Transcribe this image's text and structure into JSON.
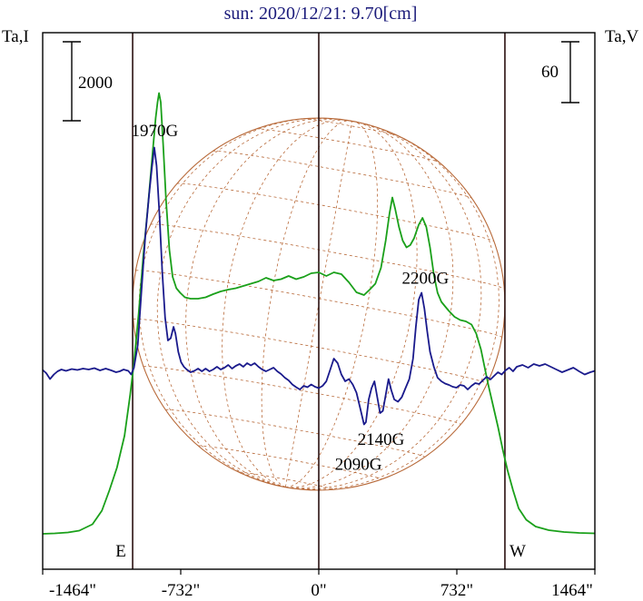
{
  "chart_data": {
    "type": "line",
    "title": "sun: 2020/12/21: 9.70[cm]",
    "ylabel_left": "Ta,I",
    "ylabel_right": "Ta,V",
    "scale_left_label": "2000",
    "scale_right_label": "60",
    "x_ticks": [
      {
        "value": -1464,
        "label": "-1464\""
      },
      {
        "value": -732,
        "label": "-732\""
      },
      {
        "value": 0,
        "label": "0\""
      },
      {
        "value": 732,
        "label": "732\""
      },
      {
        "value": 1464,
        "label": "1464\""
      }
    ],
    "xlim": [
      -1464,
      1464
    ],
    "limb_markers": [
      {
        "value": -987,
        "label": "E"
      },
      {
        "value": 987,
        "label": "W"
      }
    ],
    "series": [
      {
        "color": "#1aa01a",
        "points": [
          [
            -1464,
            0.04
          ],
          [
            -1400,
            0.05
          ],
          [
            -1330,
            0.07
          ],
          [
            -1270,
            0.11
          ],
          [
            -1200,
            0.25
          ],
          [
            -1150,
            0.55
          ],
          [
            -1110,
            1.0
          ],
          [
            -1070,
            1.5
          ],
          [
            -1030,
            2.2
          ],
          [
            -1000,
            3.1
          ],
          [
            -980,
            3.8
          ],
          [
            -955,
            4.9
          ],
          [
            -930,
            6.2
          ],
          [
            -905,
            7.3
          ],
          [
            -880,
            8.5
          ],
          [
            -865,
            9.2
          ],
          [
            -855,
            9.55
          ],
          [
            -847,
            9.75
          ],
          [
            -838,
            9.55
          ],
          [
            -825,
            8.6
          ],
          [
            -810,
            7.4
          ],
          [
            -792,
            6.3
          ],
          [
            -775,
            5.7
          ],
          [
            -755,
            5.45
          ],
          [
            -735,
            5.35
          ],
          [
            -710,
            5.25
          ],
          [
            -680,
            5.22
          ],
          [
            -640,
            5.22
          ],
          [
            -600,
            5.25
          ],
          [
            -560,
            5.32
          ],
          [
            -520,
            5.38
          ],
          [
            -480,
            5.42
          ],
          [
            -440,
            5.45
          ],
          [
            -400,
            5.5
          ],
          [
            -360,
            5.55
          ],
          [
            -320,
            5.6
          ],
          [
            -280,
            5.68
          ],
          [
            -240,
            5.62
          ],
          [
            -200,
            5.65
          ],
          [
            -160,
            5.72
          ],
          [
            -120,
            5.65
          ],
          [
            -80,
            5.7
          ],
          [
            -40,
            5.78
          ],
          [
            0,
            5.8
          ],
          [
            40,
            5.72
          ],
          [
            80,
            5.8
          ],
          [
            120,
            5.76
          ],
          [
            160,
            5.58
          ],
          [
            200,
            5.36
          ],
          [
            240,
            5.3
          ],
          [
            270,
            5.42
          ],
          [
            300,
            5.55
          ],
          [
            330,
            5.9
          ],
          [
            355,
            6.5
          ],
          [
            375,
            7.1
          ],
          [
            390,
            7.45
          ],
          [
            405,
            7.2
          ],
          [
            425,
            6.8
          ],
          [
            445,
            6.5
          ],
          [
            465,
            6.35
          ],
          [
            485,
            6.4
          ],
          [
            505,
            6.55
          ],
          [
            530,
            6.85
          ],
          [
            550,
            7.0
          ],
          [
            570,
            6.8
          ],
          [
            590,
            6.35
          ],
          [
            610,
            5.75
          ],
          [
            630,
            5.35
          ],
          [
            650,
            5.15
          ],
          [
            670,
            5.05
          ],
          [
            690,
            4.95
          ],
          [
            720,
            4.82
          ],
          [
            750,
            4.75
          ],
          [
            780,
            4.72
          ],
          [
            810,
            4.65
          ],
          [
            835,
            4.45
          ],
          [
            860,
            4.1
          ],
          [
            880,
            3.7
          ],
          [
            900,
            3.3
          ],
          [
            925,
            2.85
          ],
          [
            950,
            2.4
          ],
          [
            975,
            1.9
          ],
          [
            1000,
            1.45
          ],
          [
            1030,
            1.0
          ],
          [
            1060,
            0.6
          ],
          [
            1100,
            0.35
          ],
          [
            1150,
            0.2
          ],
          [
            1220,
            0.12
          ],
          [
            1300,
            0.08
          ],
          [
            1380,
            0.06
          ],
          [
            1464,
            0.05
          ]
        ]
      },
      {
        "color": "#1a1a8c",
        "points": [
          [
            -1464,
            3.65
          ],
          [
            -1445,
            3.58
          ],
          [
            -1425,
            3.45
          ],
          [
            -1405,
            3.55
          ],
          [
            -1385,
            3.62
          ],
          [
            -1365,
            3.66
          ],
          [
            -1340,
            3.63
          ],
          [
            -1310,
            3.67
          ],
          [
            -1280,
            3.65
          ],
          [
            -1250,
            3.68
          ],
          [
            -1220,
            3.66
          ],
          [
            -1190,
            3.69
          ],
          [
            -1160,
            3.64
          ],
          [
            -1130,
            3.68
          ],
          [
            -1100,
            3.64
          ],
          [
            -1075,
            3.6
          ],
          [
            -1055,
            3.62
          ],
          [
            -1035,
            3.66
          ],
          [
            -1010,
            3.63
          ],
          [
            -995,
            3.55
          ],
          [
            -980,
            3.7
          ],
          [
            -960,
            4.2
          ],
          [
            -940,
            5.4
          ],
          [
            -920,
            6.6
          ],
          [
            -900,
            7.5
          ],
          [
            -885,
            8.1
          ],
          [
            -872,
            8.55
          ],
          [
            -860,
            8.15
          ],
          [
            -845,
            7.1
          ],
          [
            -830,
            5.8
          ],
          [
            -815,
            4.8
          ],
          [
            -800,
            4.3
          ],
          [
            -785,
            4.35
          ],
          [
            -770,
            4.6
          ],
          [
            -760,
            4.45
          ],
          [
            -745,
            4.05
          ],
          [
            -730,
            3.82
          ],
          [
            -715,
            3.72
          ],
          [
            -700,
            3.66
          ],
          [
            -680,
            3.6
          ],
          [
            -660,
            3.63
          ],
          [
            -640,
            3.68
          ],
          [
            -620,
            3.62
          ],
          [
            -600,
            3.68
          ],
          [
            -580,
            3.62
          ],
          [
            -560,
            3.66
          ],
          [
            -540,
            3.72
          ],
          [
            -520,
            3.66
          ],
          [
            -500,
            3.7
          ],
          [
            -480,
            3.76
          ],
          [
            -460,
            3.68
          ],
          [
            -440,
            3.74
          ],
          [
            -420,
            3.78
          ],
          [
            -400,
            3.72
          ],
          [
            -380,
            3.8
          ],
          [
            -360,
            3.75
          ],
          [
            -340,
            3.8
          ],
          [
            -320,
            3.72
          ],
          [
            -300,
            3.66
          ],
          [
            -280,
            3.62
          ],
          [
            -260,
            3.66
          ],
          [
            -240,
            3.7
          ],
          [
            -220,
            3.62
          ],
          [
            -200,
            3.56
          ],
          [
            -180,
            3.48
          ],
          [
            -160,
            3.42
          ],
          [
            -140,
            3.33
          ],
          [
            -120,
            3.27
          ],
          [
            -100,
            3.22
          ],
          [
            -80,
            3.3
          ],
          [
            -60,
            3.27
          ],
          [
            -40,
            3.33
          ],
          [
            -20,
            3.28
          ],
          [
            0,
            3.25
          ],
          [
            20,
            3.3
          ],
          [
            40,
            3.4
          ],
          [
            60,
            3.65
          ],
          [
            80,
            3.9
          ],
          [
            100,
            3.8
          ],
          [
            120,
            3.55
          ],
          [
            140,
            3.4
          ],
          [
            160,
            3.45
          ],
          [
            180,
            3.33
          ],
          [
            200,
            3.15
          ],
          [
            220,
            2.8
          ],
          [
            240,
            2.45
          ],
          [
            250,
            2.5
          ],
          [
            265,
            3.0
          ],
          [
            280,
            3.25
          ],
          [
            295,
            3.4
          ],
          [
            310,
            3.05
          ],
          [
            325,
            2.7
          ],
          [
            340,
            2.75
          ],
          [
            355,
            3.1
          ],
          [
            370,
            3.45
          ],
          [
            385,
            3.2
          ],
          [
            400,
            3.0
          ],
          [
            420,
            2.95
          ],
          [
            440,
            3.05
          ],
          [
            460,
            3.25
          ],
          [
            480,
            3.45
          ],
          [
            500,
            3.9
          ],
          [
            515,
            4.6
          ],
          [
            530,
            5.2
          ],
          [
            545,
            5.35
          ],
          [
            560,
            5.0
          ],
          [
            575,
            4.5
          ],
          [
            590,
            4.05
          ],
          [
            610,
            3.72
          ],
          [
            630,
            3.48
          ],
          [
            650,
            3.4
          ],
          [
            670,
            3.35
          ],
          [
            690,
            3.32
          ],
          [
            710,
            3.28
          ],
          [
            730,
            3.26
          ],
          [
            750,
            3.32
          ],
          [
            770,
            3.3
          ],
          [
            790,
            3.22
          ],
          [
            810,
            3.3
          ],
          [
            830,
            3.36
          ],
          [
            850,
            3.34
          ],
          [
            870,
            3.42
          ],
          [
            890,
            3.5
          ],
          [
            910,
            3.44
          ],
          [
            930,
            3.52
          ],
          [
            950,
            3.6
          ],
          [
            970,
            3.55
          ],
          [
            990,
            3.64
          ],
          [
            1010,
            3.7
          ],
          [
            1030,
            3.62
          ],
          [
            1050,
            3.72
          ],
          [
            1080,
            3.76
          ],
          [
            1110,
            3.7
          ],
          [
            1140,
            3.78
          ],
          [
            1170,
            3.74
          ],
          [
            1200,
            3.78
          ],
          [
            1230,
            3.72
          ],
          [
            1260,
            3.66
          ],
          [
            1290,
            3.6
          ],
          [
            1320,
            3.65
          ],
          [
            1350,
            3.7
          ],
          [
            1380,
            3.62
          ],
          [
            1410,
            3.55
          ],
          [
            1440,
            3.6
          ],
          [
            1464,
            3.63
          ]
        ]
      }
    ],
    "annotations": [
      {
        "text": "1970G",
        "x": -870,
        "y": 8.8
      },
      {
        "text": "2200G",
        "x": 565,
        "y": 5.55
      },
      {
        "text": "2140G",
        "x": 330,
        "y": 2.0
      },
      {
        "text": "2090G",
        "x": 210,
        "y": 1.45
      }
    ],
    "solar_disk": {
      "radius": 987,
      "center_x": 0,
      "center_y": 5.1
    },
    "colors": {
      "frame": "#000000",
      "grid_lines": "#2a1010",
      "disk": "#b86a3a",
      "title": "#1a1a7a"
    }
  }
}
